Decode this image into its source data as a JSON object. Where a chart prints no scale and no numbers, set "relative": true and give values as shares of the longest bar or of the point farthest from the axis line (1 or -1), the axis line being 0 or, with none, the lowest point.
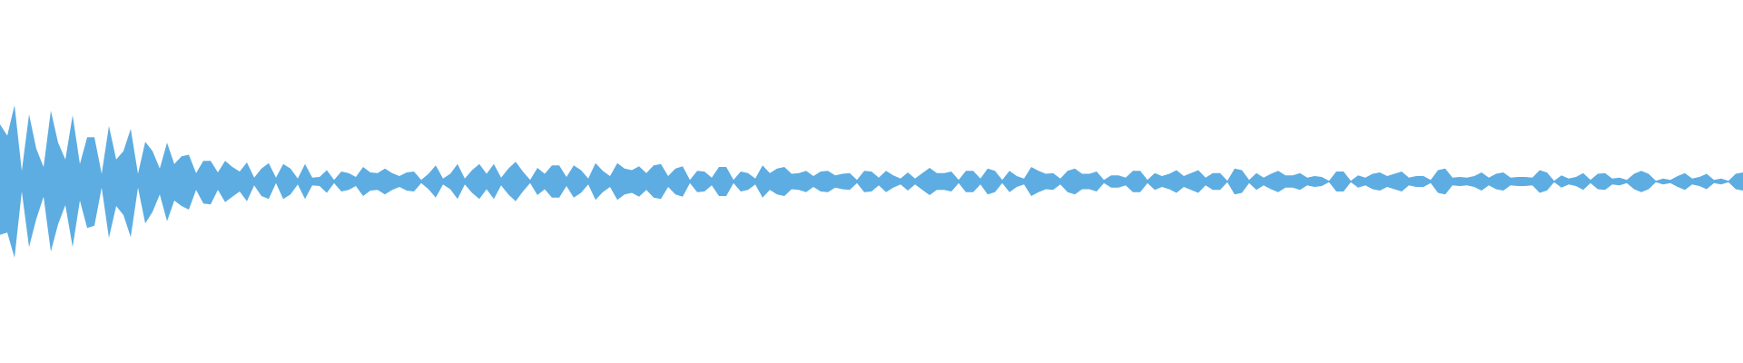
{
  "chart_data": {
    "type": "area",
    "relative": true,
    "categories": [
      null,
      null,
      null,
      null,
      null,
      null,
      null,
      null,
      null,
      null,
      null,
      null,
      null,
      null,
      null,
      null,
      null,
      null,
      null,
      null,
      null,
      null,
      null,
      null,
      null,
      null,
      null,
      null,
      null,
      null,
      null,
      null,
      null,
      null,
      null,
      null,
      null,
      null,
      null,
      null,
      null,
      null,
      null,
      null,
      null,
      null,
      null,
      null,
      null,
      null,
      null,
      null,
      null,
      null,
      null,
      null,
      null,
      null,
      null,
      null,
      null,
      null,
      null,
      null,
      null,
      null,
      null,
      null,
      null,
      null,
      null,
      null,
      null,
      null,
      null,
      null,
      null,
      null,
      null,
      null,
      null,
      null,
      null,
      null,
      null,
      null,
      null,
      null,
      null,
      null,
      null,
      null,
      null,
      null,
      null,
      null,
      null,
      null,
      null,
      null,
      null,
      null,
      null,
      null,
      null,
      null,
      null,
      null,
      null,
      null,
      null,
      null,
      null,
      null,
      null,
      null,
      null,
      null,
      null,
      null,
      null,
      null,
      null,
      null,
      null,
      null,
      null,
      null,
      null,
      null,
      null,
      null,
      null,
      null,
      null,
      null,
      null,
      null,
      null,
      null,
      null,
      null,
      null,
      null,
      null,
      null,
      null,
      null,
      null,
      null,
      null,
      null,
      null,
      null,
      null,
      null,
      null,
      null,
      null,
      null,
      null,
      null,
      null,
      null,
      null,
      null,
      null,
      null,
      null,
      null,
      null,
      null,
      null,
      null,
      null,
      null,
      null,
      null,
      null,
      null,
      null,
      null,
      null,
      null,
      null,
      null,
      null,
      null,
      null,
      null,
      null,
      null,
      null,
      null,
      null,
      null,
      null,
      null,
      null,
      null,
      null,
      null,
      null,
      null,
      null,
      null,
      null,
      null,
      null,
      null,
      null,
      null,
      null,
      null,
      null,
      null,
      null,
      null,
      null,
      null,
      null,
      null,
      null,
      null,
      null,
      null,
      null,
      null,
      null,
      null,
      null,
      null,
      null,
      null,
      null,
      null,
      null,
      null,
      null,
      null,
      null
    ],
    "series": [
      {
        "color": "#5dade2",
        "values": [
          0.75,
          0.6,
          1,
          0.14,
          0.88,
          0.43,
          0.19,
          0.93,
          0.51,
          0.29,
          0.87,
          0.23,
          0.58,
          0.58,
          0.1,
          0.73,
          0.29,
          0.4,
          0.69,
          0.1,
          0.52,
          0.4,
          0.17,
          0.51,
          0.23,
          0.33,
          0.35,
          0.11,
          0.27,
          0.27,
          0.12,
          0.27,
          0.19,
          0.13,
          0.25,
          0.05,
          0.17,
          0.24,
          0.05,
          0.23,
          0.17,
          0.04,
          0.23,
          0.05,
          0.06,
          0.15,
          0.02,
          0.13,
          0.11,
          0.06,
          0.19,
          0.12,
          0.11,
          0.17,
          0.11,
          0.07,
          0.12,
          0.13,
          0.02,
          0.1,
          0.21,
          0.04,
          0.1,
          0.23,
          0.04,
          0.15,
          0.23,
          0.1,
          0.23,
          0.05,
          0.17,
          0.26,
          0.13,
          0.02,
          0.18,
          0.1,
          0.21,
          0.21,
          0.06,
          0.21,
          0.15,
          0.04,
          0.24,
          0.14,
          0.07,
          0.24,
          0.17,
          0.15,
          0.2,
          0.11,
          0.21,
          0.23,
          0.07,
          0.17,
          0.2,
          0.02,
          0.14,
          0.13,
          0.05,
          0.19,
          0.19,
          0.02,
          0.13,
          0.11,
          0.04,
          0.21,
          0.11,
          0.17,
          0.19,
          0.1,
          0.11,
          0.14,
          0.07,
          0.13,
          0.14,
          0.08,
          0.1,
          0.11,
          0.02,
          0.14,
          0.13,
          0.05,
          0.14,
          0.08,
          0.04,
          0.12,
          0.04,
          0.11,
          0.18,
          0.11,
          0.11,
          0.13,
          0.02,
          0.14,
          0.14,
          0.04,
          0.17,
          0.14,
          0.02,
          0.14,
          0.07,
          0.04,
          0.19,
          0.14,
          0.1,
          0.11,
          0.04,
          0.14,
          0.17,
          0.1,
          0.1,
          0.13,
          0.02,
          0.08,
          0.08,
          0.05,
          0.14,
          0.14,
          0.02,
          0.11,
          0.07,
          0.1,
          0.15,
          0.07,
          0.11,
          0.15,
          0.05,
          0.11,
          0.11,
          0.01,
          0.17,
          0.15,
          0.02,
          0.11,
          0.05,
          0.1,
          0.14,
          0.08,
          0.08,
          0.11,
          0.05,
          0.07,
          0.06,
          0.01,
          0.13,
          0.13,
          0.01,
          0.08,
          0.05,
          0.1,
          0.12,
          0.07,
          0.1,
          0.13,
          0.05,
          0.07,
          0.07,
          0.02,
          0.15,
          0.17,
          0.05,
          0.06,
          0.05,
          0.07,
          0.12,
          0.05,
          0.1,
          0.12,
          0.05,
          0.06,
          0.06,
          0.05,
          0.15,
          0.12,
          0.01,
          0.08,
          0.04,
          0.06,
          0.11,
          0.02,
          0.1,
          0.11,
          0.04,
          0.05,
          0.02,
          0.1,
          0.14,
          0.1,
          0.01,
          0.04,
          0.02,
          0.07,
          0.11,
          0.04,
          0.06,
          0.1,
          0.02,
          0.04,
          0.01,
          0.1,
          0.12
        ]
      },
      {
        "color": "#5dade2",
        "values": [
          -0.7,
          -0.67,
          -1,
          -0.13,
          -0.86,
          -0.49,
          -0.2,
          -0.92,
          -0.56,
          -0.31,
          -0.86,
          -0.25,
          -0.61,
          -0.58,
          -0.08,
          -0.74,
          -0.32,
          -0.44,
          -0.73,
          -0.08,
          -0.55,
          -0.4,
          -0.17,
          -0.52,
          -0.25,
          -0.32,
          -0.37,
          -0.11,
          -0.29,
          -0.3,
          -0.11,
          -0.27,
          -0.2,
          -0.13,
          -0.26,
          -0.05,
          -0.19,
          -0.23,
          -0.02,
          -0.23,
          -0.17,
          -0.04,
          -0.23,
          -0.05,
          -0.06,
          -0.15,
          -0.02,
          -0.13,
          -0.11,
          -0.06,
          -0.19,
          -0.12,
          -0.11,
          -0.17,
          -0.11,
          -0.07,
          -0.12,
          -0.13,
          -0.02,
          -0.1,
          -0.21,
          -0.04,
          -0.1,
          -0.23,
          -0.04,
          -0.15,
          -0.23,
          -0.1,
          -0.23,
          -0.05,
          -0.17,
          -0.26,
          -0.13,
          -0.02,
          -0.18,
          -0.1,
          -0.21,
          -0.21,
          -0.06,
          -0.21,
          -0.15,
          -0.04,
          -0.24,
          -0.14,
          -0.07,
          -0.24,
          -0.17,
          -0.15,
          -0.2,
          -0.11,
          -0.21,
          -0.23,
          -0.07,
          -0.17,
          -0.2,
          -0.02,
          -0.14,
          -0.13,
          -0.05,
          -0.19,
          -0.19,
          -0.02,
          -0.13,
          -0.11,
          -0.04,
          -0.21,
          -0.11,
          -0.17,
          -0.19,
          -0.1,
          -0.11,
          -0.14,
          -0.07,
          -0.13,
          -0.14,
          -0.08,
          -0.1,
          -0.11,
          -0.02,
          -0.14,
          -0.13,
          -0.05,
          -0.14,
          -0.08,
          -0.04,
          -0.12,
          -0.04,
          -0.11,
          -0.18,
          -0.11,
          -0.11,
          -0.13,
          -0.02,
          -0.14,
          -0.14,
          -0.04,
          -0.17,
          -0.14,
          -0.02,
          -0.14,
          -0.07,
          -0.04,
          -0.19,
          -0.14,
          -0.1,
          -0.11,
          -0.04,
          -0.14,
          -0.17,
          -0.1,
          -0.1,
          -0.13,
          -0.02,
          -0.08,
          -0.08,
          -0.05,
          -0.14,
          -0.14,
          -0.02,
          -0.11,
          -0.07,
          -0.1,
          -0.15,
          -0.07,
          -0.11,
          -0.15,
          -0.05,
          -0.11,
          -0.11,
          -0.01,
          -0.17,
          -0.15,
          -0.02,
          -0.11,
          -0.05,
          -0.1,
          -0.14,
          -0.08,
          -0.08,
          -0.11,
          -0.05,
          -0.07,
          -0.06,
          -0.01,
          -0.13,
          -0.13,
          -0.01,
          -0.08,
          -0.05,
          -0.1,
          -0.12,
          -0.07,
          -0.1,
          -0.13,
          -0.05,
          -0.07,
          -0.07,
          -0.02,
          -0.15,
          -0.17,
          -0.05,
          -0.06,
          -0.05,
          -0.07,
          -0.12,
          -0.05,
          -0.1,
          -0.12,
          -0.05,
          -0.06,
          -0.06,
          -0.05,
          -0.15,
          -0.12,
          -0.01,
          -0.08,
          -0.04,
          -0.06,
          -0.11,
          -0.02,
          -0.1,
          -0.11,
          -0.04,
          -0.05,
          -0.02,
          -0.1,
          -0.14,
          -0.1,
          -0.01,
          -0.04,
          -0.02,
          -0.07,
          -0.11,
          -0.04,
          -0.06,
          -0.1,
          -0.02,
          -0.04,
          -0.01,
          -0.1,
          -0.12
        ]
      }
    ]
  }
}
